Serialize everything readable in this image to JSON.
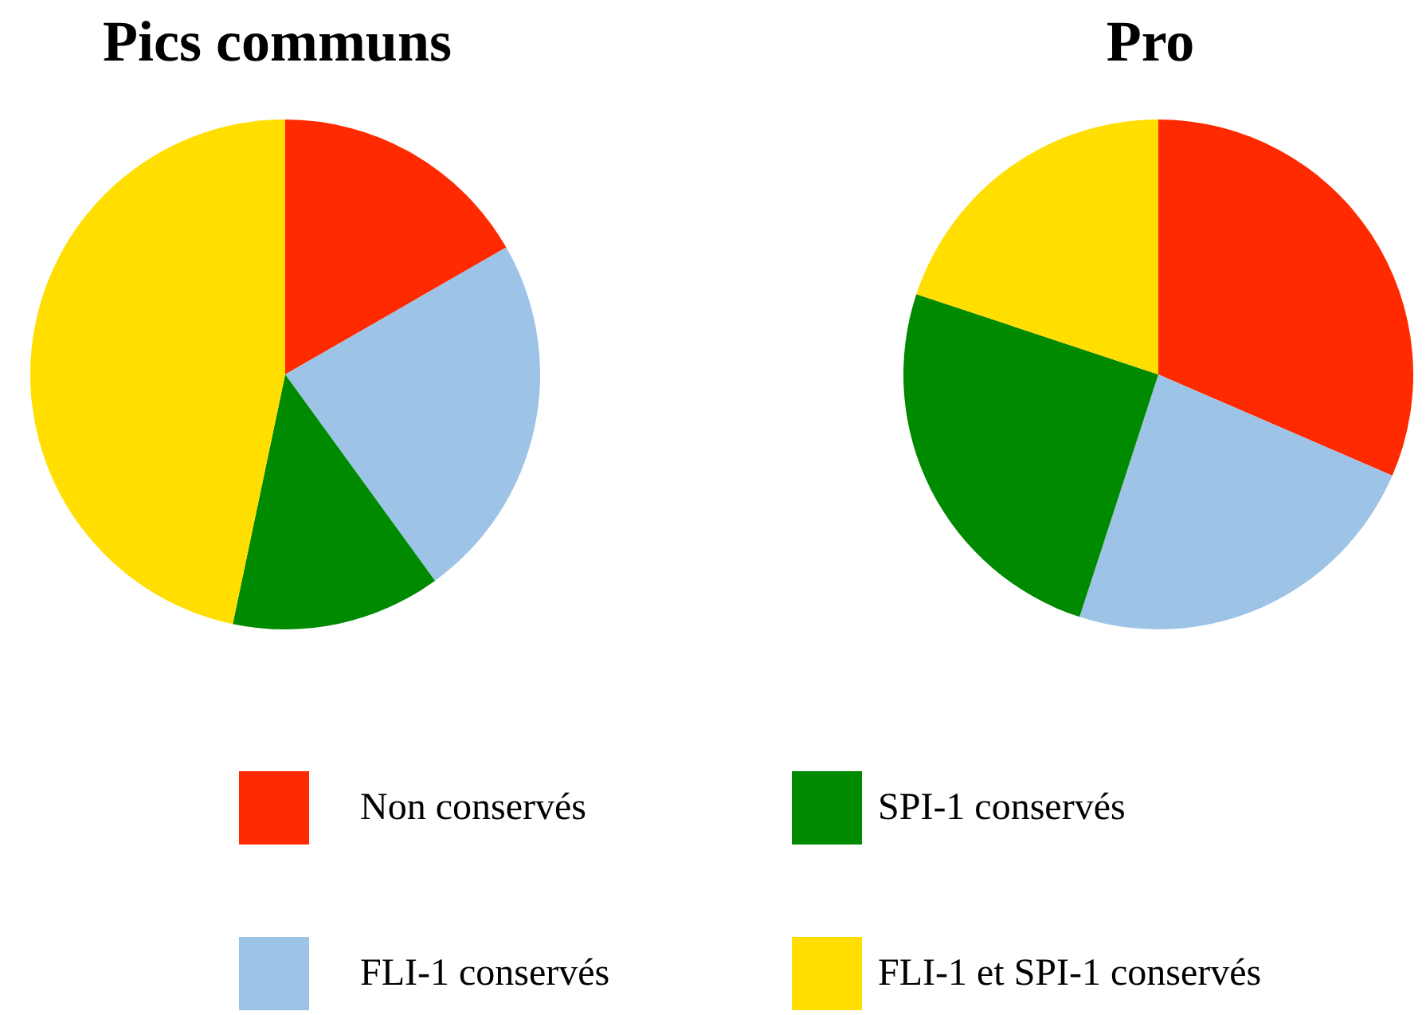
{
  "chart_data": [
    {
      "type": "pie",
      "title": "Pics communs",
      "categories": [
        "Non conservés",
        "FLI-1 conservés",
        "SPI-1 conservés",
        "FLI-1 et SPI-1 conservés"
      ],
      "values": [
        16.7,
        23.3,
        13.3,
        46.7
      ],
      "colors": [
        "#ff2a00",
        "#9dc3e6",
        "#008a00",
        "#ffde00"
      ],
      "legend": "bottom"
    },
    {
      "type": "pie",
      "title": "Pro",
      "categories": [
        null,
        null,
        null,
        null
      ],
      "values": [
        31.5,
        23.5,
        25.1,
        19.9
      ],
      "colors": [
        "#ff2a00",
        "#9dc3e6",
        "#008a00",
        "#ffde00"
      ]
    }
  ]
}
